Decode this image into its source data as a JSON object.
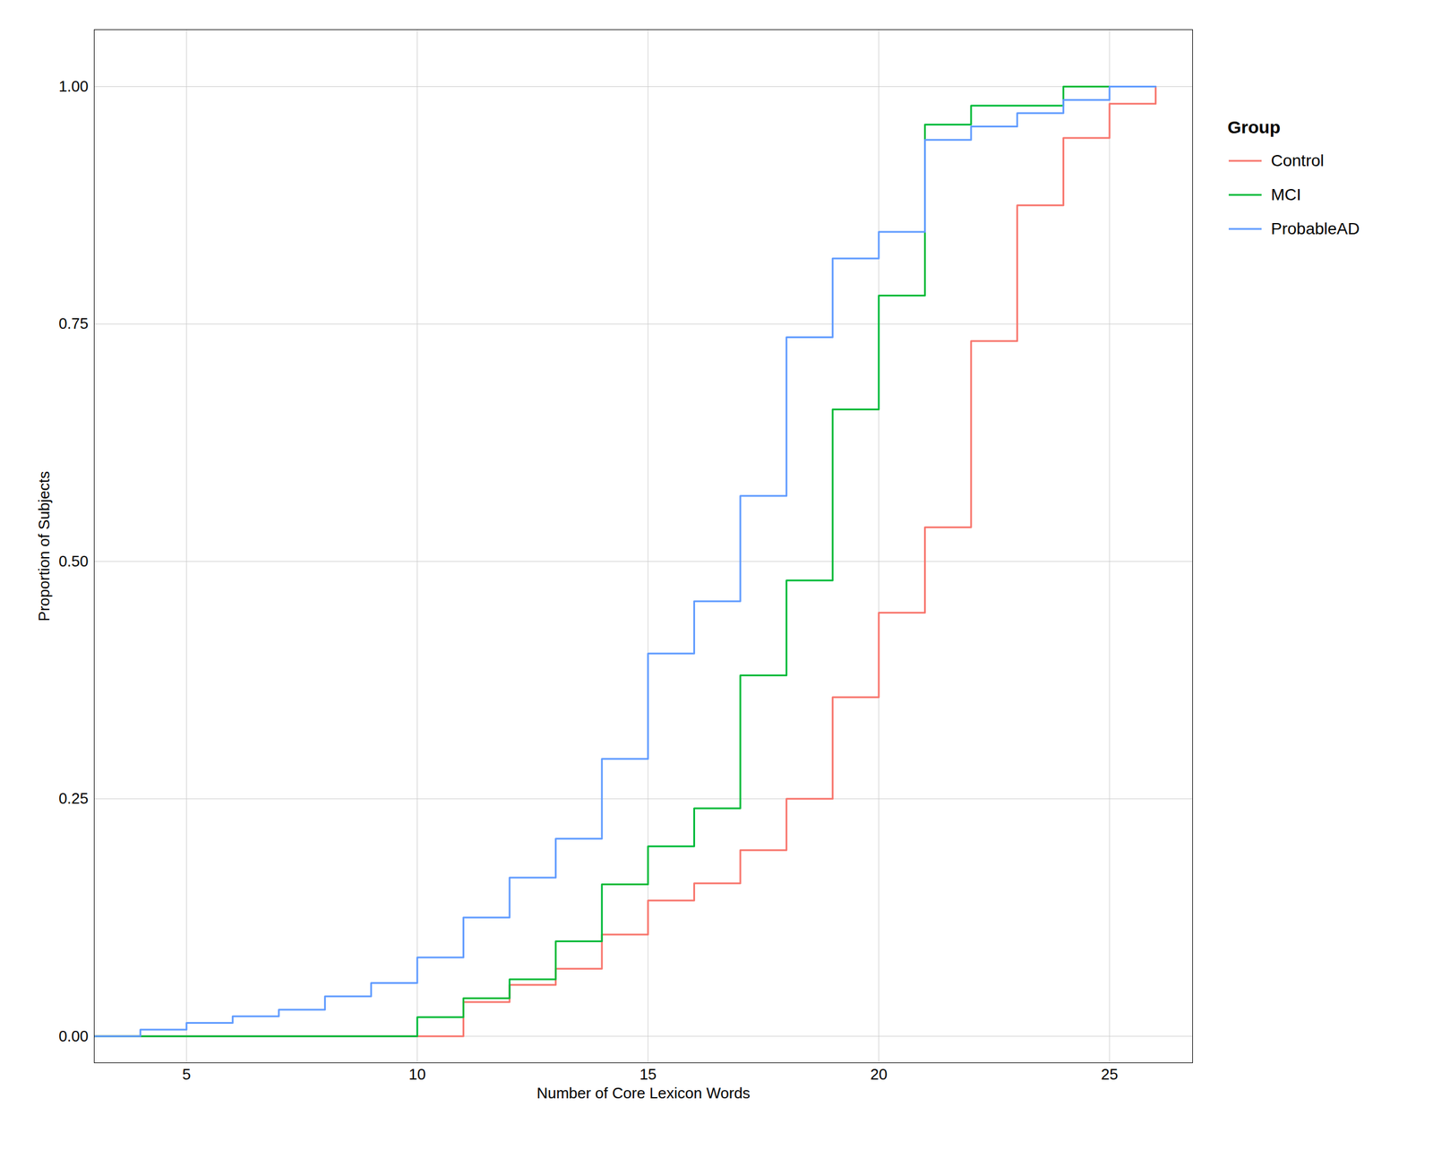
{
  "chart_data": {
    "type": "step",
    "xlabel": "Number of Core Lexicon Words",
    "ylabel": "Proportion of Subjects",
    "legend_title": "Group",
    "legend": "right",
    "grid": true,
    "xlim": [
      3.0,
      26.8
    ],
    "ylim": [
      -0.028,
      1.06
    ],
    "xticks": [
      5,
      10,
      15,
      20,
      25
    ],
    "yticks": [
      {
        "value": 0.0,
        "label": "0.00"
      },
      0.25,
      {
        "value": 0.5,
        "label": "0.50"
      },
      0.75,
      {
        "value": 1.0,
        "label": "1.00"
      }
    ],
    "series": [
      {
        "name": "Control",
        "color": "#F8766D",
        "x": [
          3,
          11,
          12,
          13,
          14,
          15,
          16,
          17,
          18,
          19,
          20,
          21,
          22,
          23,
          24,
          25,
          26
        ],
        "values": [
          0.0,
          0.036,
          0.054,
          0.071,
          0.107,
          0.143,
          0.161,
          0.196,
          0.25,
          0.357,
          0.446,
          0.536,
          0.732,
          0.875,
          0.946,
          0.982,
          1.0
        ]
      },
      {
        "name": "MCI",
        "color": "#00BA38",
        "x": [
          3,
          10,
          11,
          12,
          13,
          14,
          15,
          16,
          17,
          18,
          19,
          20,
          21,
          22,
          23,
          24,
          25
        ],
        "values": [
          0.0,
          0.02,
          0.04,
          0.06,
          0.1,
          0.16,
          0.2,
          0.24,
          0.38,
          0.48,
          0.66,
          0.78,
          0.96,
          0.98,
          0.98,
          1.0,
          1.0
        ]
      },
      {
        "name": "ProbableAD",
        "color": "#619CFF",
        "x": [
          3,
          4,
          5,
          6,
          7,
          8,
          9,
          10,
          11,
          12,
          13,
          14,
          15,
          16,
          17,
          18,
          19,
          20,
          21,
          22,
          23,
          24,
          25,
          26
        ],
        "values": [
          0.0,
          0.007,
          0.014,
          0.021,
          0.028,
          0.042,
          0.056,
          0.083,
          0.125,
          0.167,
          0.208,
          0.292,
          0.403,
          0.458,
          0.569,
          0.736,
          0.819,
          0.847,
          0.944,
          0.958,
          0.972,
          0.986,
          1.0,
          1.0
        ]
      }
    ]
  }
}
